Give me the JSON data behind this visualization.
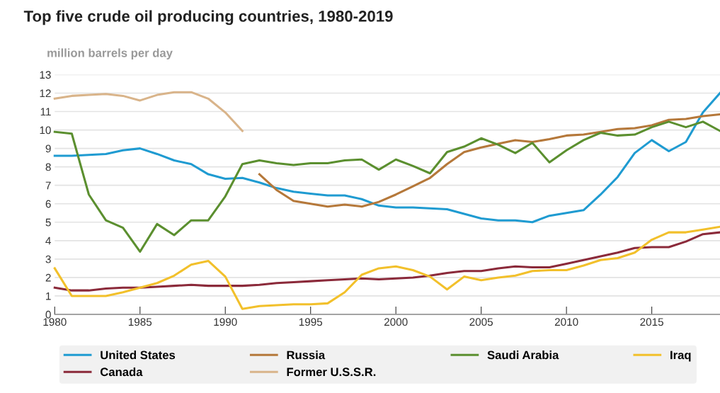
{
  "chart_data": {
    "type": "line",
    "title": "Top five crude oil producing countries, 1980-2019",
    "ylabel": "million barrels per day",
    "x": [
      1980,
      1981,
      1982,
      1983,
      1984,
      1985,
      1986,
      1987,
      1988,
      1989,
      1990,
      1991,
      1992,
      1993,
      1994,
      1995,
      1996,
      1997,
      1998,
      1999,
      2000,
      2001,
      2002,
      2003,
      2004,
      2005,
      2006,
      2007,
      2008,
      2009,
      2010,
      2011,
      2012,
      2013,
      2014,
      2015,
      2016,
      2017,
      2018,
      2019
    ],
    "series": [
      {
        "name": "United States",
        "color": "#1f9bd1",
        "values": [
          8.6,
          8.6,
          8.65,
          8.7,
          8.9,
          9.0,
          8.7,
          8.35,
          8.15,
          7.6,
          7.35,
          7.4,
          7.15,
          6.85,
          6.65,
          6.55,
          6.45,
          6.45,
          6.25,
          5.9,
          5.8,
          5.8,
          5.75,
          5.7,
          5.45,
          5.2,
          5.1,
          5.1,
          5.0,
          5.35,
          5.5,
          5.65,
          6.5,
          7.45,
          8.75,
          9.45,
          8.85,
          9.35,
          10.95,
          12.0
        ]
      },
      {
        "name": "Canada",
        "color": "#8b2a3a",
        "values": [
          1.45,
          1.3,
          1.3,
          1.4,
          1.45,
          1.45,
          1.5,
          1.55,
          1.6,
          1.55,
          1.55,
          1.55,
          1.6,
          1.7,
          1.75,
          1.8,
          1.85,
          1.9,
          1.95,
          1.9,
          1.95,
          2.0,
          2.1,
          2.25,
          2.35,
          2.35,
          2.5,
          2.6,
          2.55,
          2.55,
          2.75,
          2.95,
          3.15,
          3.35,
          3.6,
          3.65,
          3.65,
          3.95,
          4.35,
          4.45
        ]
      },
      {
        "name": "Russia",
        "color": "#b5783a",
        "values": [
          null,
          null,
          null,
          null,
          null,
          null,
          null,
          null,
          null,
          null,
          null,
          null,
          7.6,
          6.75,
          6.15,
          6.0,
          5.85,
          5.95,
          5.85,
          6.1,
          6.5,
          6.95,
          7.4,
          8.15,
          8.8,
          9.05,
          9.25,
          9.45,
          9.35,
          9.5,
          9.7,
          9.75,
          9.9,
          10.05,
          10.1,
          10.25,
          10.55,
          10.6,
          10.75,
          10.85
        ]
      },
      {
        "name": "Former U.S.S.R.",
        "color": "#d9b48a",
        "values": [
          11.7,
          11.85,
          11.9,
          11.95,
          11.85,
          11.6,
          11.9,
          12.05,
          12.05,
          11.7,
          10.95,
          9.95,
          null,
          null,
          null,
          null,
          null,
          null,
          null,
          null,
          null,
          null,
          null,
          null,
          null,
          null,
          null,
          null,
          null,
          null,
          null,
          null,
          null,
          null,
          null,
          null,
          null,
          null,
          null,
          null
        ]
      },
      {
        "name": "Saudi Arabia",
        "color": "#5b8f2f",
        "values": [
          9.9,
          9.8,
          6.5,
          5.1,
          4.7,
          3.4,
          4.9,
          4.3,
          5.1,
          5.1,
          6.4,
          8.15,
          8.35,
          8.2,
          8.1,
          8.2,
          8.2,
          8.35,
          8.4,
          7.85,
          8.4,
          8.05,
          7.65,
          8.8,
          9.1,
          9.55,
          9.2,
          8.75,
          9.3,
          8.25,
          8.9,
          9.45,
          9.85,
          9.7,
          9.75,
          10.15,
          10.45,
          10.15,
          10.45,
          9.95
        ]
      },
      {
        "name": "Iraq",
        "color": "#f2c02b",
        "values": [
          2.5,
          1.0,
          1.0,
          1.0,
          1.2,
          1.45,
          1.7,
          2.1,
          2.7,
          2.9,
          2.05,
          0.3,
          0.45,
          0.5,
          0.55,
          0.55,
          0.6,
          1.2,
          2.15,
          2.5,
          2.6,
          2.4,
          2.05,
          1.35,
          2.05,
          1.85,
          2.0,
          2.1,
          2.35,
          2.4,
          2.4,
          2.65,
          2.95,
          3.05,
          3.35,
          4.05,
          4.45,
          4.45,
          4.6,
          4.75
        ]
      }
    ],
    "xlim": [
      1980,
      2019
    ],
    "xticks": [
      1980,
      1985,
      1990,
      1995,
      2000,
      2005,
      2010,
      2015
    ],
    "ylim": [
      0,
      13
    ],
    "yticks": [
      0,
      1,
      2,
      3,
      4,
      5,
      6,
      7,
      8,
      9,
      10,
      11,
      12,
      13
    ],
    "grid": "y",
    "legend": "bottom",
    "line_style": "solid",
    "marker": "none"
  }
}
